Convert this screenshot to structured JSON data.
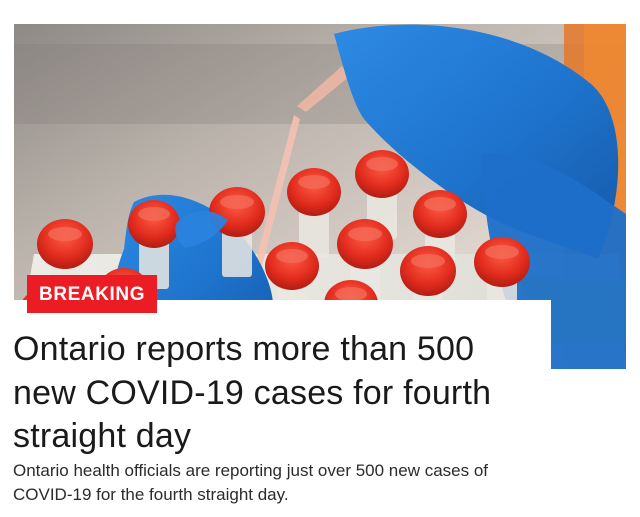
{
  "article": {
    "badge": "BREAKING",
    "headline": "Ontario reports more than 500 new COVID-19 cases for fourth straight day",
    "summary": "Ontario health officials are reporting just over 500 new cases of COVID-19 for the fourth straight day."
  },
  "colors": {
    "badge_red": "#ec1c24",
    "glove_blue": "#1f78d1",
    "vial_red": "#e53021",
    "text_dark": "#1a1a1a"
  },
  "image": {
    "subject": "photo-lab-vials"
  }
}
